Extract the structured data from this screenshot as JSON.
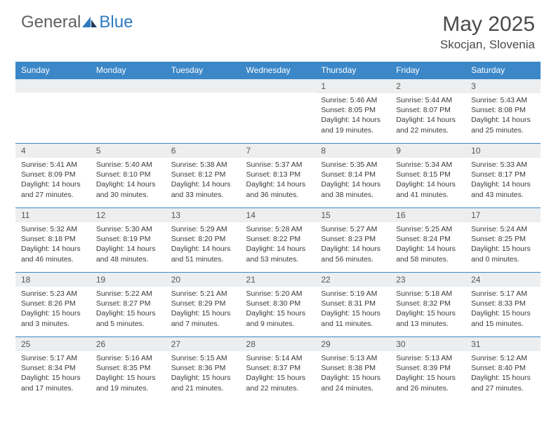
{
  "logo": {
    "general": "General",
    "blue": "Blue"
  },
  "title": {
    "month_year": "May 2025",
    "location": "Skocjan, Slovenia"
  },
  "colors": {
    "header_bg": "#3b87c8",
    "header_text": "#ffffff",
    "daynum_bg": "#eceef0",
    "border": "#3b87c8",
    "logo_blue": "#2f7ac0",
    "logo_gray": "#606060",
    "text": "#3a3a3a"
  },
  "weekdays": [
    "Sunday",
    "Monday",
    "Tuesday",
    "Wednesday",
    "Thursday",
    "Friday",
    "Saturday"
  ],
  "weeks": [
    [
      {
        "n": "",
        "sr": "",
        "ss": "",
        "dl": ""
      },
      {
        "n": "",
        "sr": "",
        "ss": "",
        "dl": ""
      },
      {
        "n": "",
        "sr": "",
        "ss": "",
        "dl": ""
      },
      {
        "n": "",
        "sr": "",
        "ss": "",
        "dl": ""
      },
      {
        "n": "1",
        "sr": "Sunrise: 5:46 AM",
        "ss": "Sunset: 8:05 PM",
        "dl": "Daylight: 14 hours and 19 minutes."
      },
      {
        "n": "2",
        "sr": "Sunrise: 5:44 AM",
        "ss": "Sunset: 8:07 PM",
        "dl": "Daylight: 14 hours and 22 minutes."
      },
      {
        "n": "3",
        "sr": "Sunrise: 5:43 AM",
        "ss": "Sunset: 8:08 PM",
        "dl": "Daylight: 14 hours and 25 minutes."
      }
    ],
    [
      {
        "n": "4",
        "sr": "Sunrise: 5:41 AM",
        "ss": "Sunset: 8:09 PM",
        "dl": "Daylight: 14 hours and 27 minutes."
      },
      {
        "n": "5",
        "sr": "Sunrise: 5:40 AM",
        "ss": "Sunset: 8:10 PM",
        "dl": "Daylight: 14 hours and 30 minutes."
      },
      {
        "n": "6",
        "sr": "Sunrise: 5:38 AM",
        "ss": "Sunset: 8:12 PM",
        "dl": "Daylight: 14 hours and 33 minutes."
      },
      {
        "n": "7",
        "sr": "Sunrise: 5:37 AM",
        "ss": "Sunset: 8:13 PM",
        "dl": "Daylight: 14 hours and 36 minutes."
      },
      {
        "n": "8",
        "sr": "Sunrise: 5:35 AM",
        "ss": "Sunset: 8:14 PM",
        "dl": "Daylight: 14 hours and 38 minutes."
      },
      {
        "n": "9",
        "sr": "Sunrise: 5:34 AM",
        "ss": "Sunset: 8:15 PM",
        "dl": "Daylight: 14 hours and 41 minutes."
      },
      {
        "n": "10",
        "sr": "Sunrise: 5:33 AM",
        "ss": "Sunset: 8:17 PM",
        "dl": "Daylight: 14 hours and 43 minutes."
      }
    ],
    [
      {
        "n": "11",
        "sr": "Sunrise: 5:32 AM",
        "ss": "Sunset: 8:18 PM",
        "dl": "Daylight: 14 hours and 46 minutes."
      },
      {
        "n": "12",
        "sr": "Sunrise: 5:30 AM",
        "ss": "Sunset: 8:19 PM",
        "dl": "Daylight: 14 hours and 48 minutes."
      },
      {
        "n": "13",
        "sr": "Sunrise: 5:29 AM",
        "ss": "Sunset: 8:20 PM",
        "dl": "Daylight: 14 hours and 51 minutes."
      },
      {
        "n": "14",
        "sr": "Sunrise: 5:28 AM",
        "ss": "Sunset: 8:22 PM",
        "dl": "Daylight: 14 hours and 53 minutes."
      },
      {
        "n": "15",
        "sr": "Sunrise: 5:27 AM",
        "ss": "Sunset: 8:23 PM",
        "dl": "Daylight: 14 hours and 56 minutes."
      },
      {
        "n": "16",
        "sr": "Sunrise: 5:25 AM",
        "ss": "Sunset: 8:24 PM",
        "dl": "Daylight: 14 hours and 58 minutes."
      },
      {
        "n": "17",
        "sr": "Sunrise: 5:24 AM",
        "ss": "Sunset: 8:25 PM",
        "dl": "Daylight: 15 hours and 0 minutes."
      }
    ],
    [
      {
        "n": "18",
        "sr": "Sunrise: 5:23 AM",
        "ss": "Sunset: 8:26 PM",
        "dl": "Daylight: 15 hours and 3 minutes."
      },
      {
        "n": "19",
        "sr": "Sunrise: 5:22 AM",
        "ss": "Sunset: 8:27 PM",
        "dl": "Daylight: 15 hours and 5 minutes."
      },
      {
        "n": "20",
        "sr": "Sunrise: 5:21 AM",
        "ss": "Sunset: 8:29 PM",
        "dl": "Daylight: 15 hours and 7 minutes."
      },
      {
        "n": "21",
        "sr": "Sunrise: 5:20 AM",
        "ss": "Sunset: 8:30 PM",
        "dl": "Daylight: 15 hours and 9 minutes."
      },
      {
        "n": "22",
        "sr": "Sunrise: 5:19 AM",
        "ss": "Sunset: 8:31 PM",
        "dl": "Daylight: 15 hours and 11 minutes."
      },
      {
        "n": "23",
        "sr": "Sunrise: 5:18 AM",
        "ss": "Sunset: 8:32 PM",
        "dl": "Daylight: 15 hours and 13 minutes."
      },
      {
        "n": "24",
        "sr": "Sunrise: 5:17 AM",
        "ss": "Sunset: 8:33 PM",
        "dl": "Daylight: 15 hours and 15 minutes."
      }
    ],
    [
      {
        "n": "25",
        "sr": "Sunrise: 5:17 AM",
        "ss": "Sunset: 8:34 PM",
        "dl": "Daylight: 15 hours and 17 minutes."
      },
      {
        "n": "26",
        "sr": "Sunrise: 5:16 AM",
        "ss": "Sunset: 8:35 PM",
        "dl": "Daylight: 15 hours and 19 minutes."
      },
      {
        "n": "27",
        "sr": "Sunrise: 5:15 AM",
        "ss": "Sunset: 8:36 PM",
        "dl": "Daylight: 15 hours and 21 minutes."
      },
      {
        "n": "28",
        "sr": "Sunrise: 5:14 AM",
        "ss": "Sunset: 8:37 PM",
        "dl": "Daylight: 15 hours and 22 minutes."
      },
      {
        "n": "29",
        "sr": "Sunrise: 5:13 AM",
        "ss": "Sunset: 8:38 PM",
        "dl": "Daylight: 15 hours and 24 minutes."
      },
      {
        "n": "30",
        "sr": "Sunrise: 5:13 AM",
        "ss": "Sunset: 8:39 PM",
        "dl": "Daylight: 15 hours and 26 minutes."
      },
      {
        "n": "31",
        "sr": "Sunrise: 5:12 AM",
        "ss": "Sunset: 8:40 PM",
        "dl": "Daylight: 15 hours and 27 minutes."
      }
    ]
  ]
}
